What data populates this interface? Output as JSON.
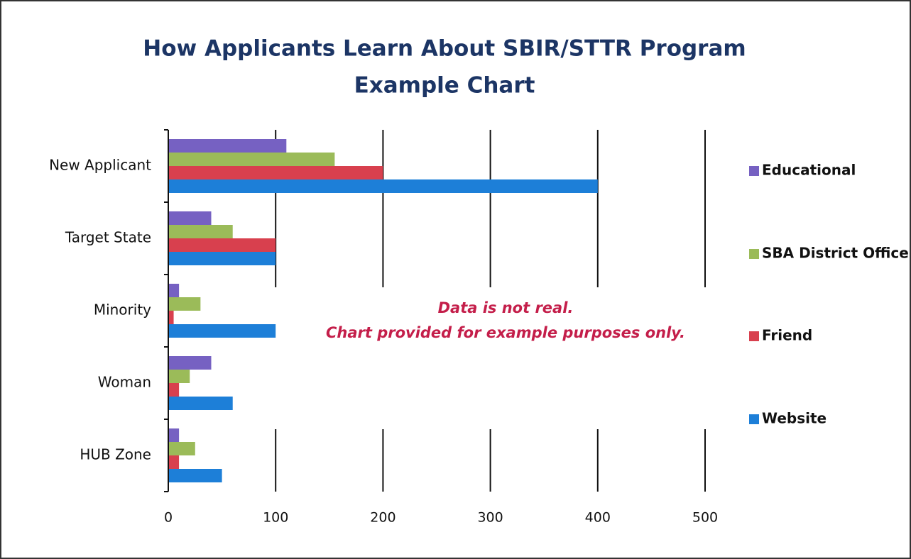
{
  "chart_data": {
    "type": "bar",
    "orientation": "horizontal",
    "title": "How Applicants Learn About SBIR/STTR Program",
    "subtitle": "Example Chart",
    "annotations": [
      "Data is not real.",
      "Chart provided for example purposes only."
    ],
    "categories": [
      "New Applicant",
      "Target State",
      "Minority",
      "Woman",
      "HUB Zone"
    ],
    "series": [
      {
        "name": "Educational",
        "color": "#7661c2",
        "values": [
          110,
          40,
          10,
          40,
          10
        ]
      },
      {
        "name": "SBA District Office",
        "color": "#9bbb59",
        "values": [
          155,
          60,
          30,
          20,
          25
        ]
      },
      {
        "name": "Friend",
        "color": "#d8404e",
        "values": [
          200,
          100,
          5,
          10,
          10
        ]
      },
      {
        "name": "Website",
        "color": "#1d7fd8",
        "values": [
          400,
          100,
          100,
          60,
          50
        ]
      }
    ],
    "xlim": [
      0,
      500
    ],
    "xticks": [
      0,
      100,
      200,
      300,
      400,
      500
    ],
    "grid": true,
    "legend": "right"
  }
}
